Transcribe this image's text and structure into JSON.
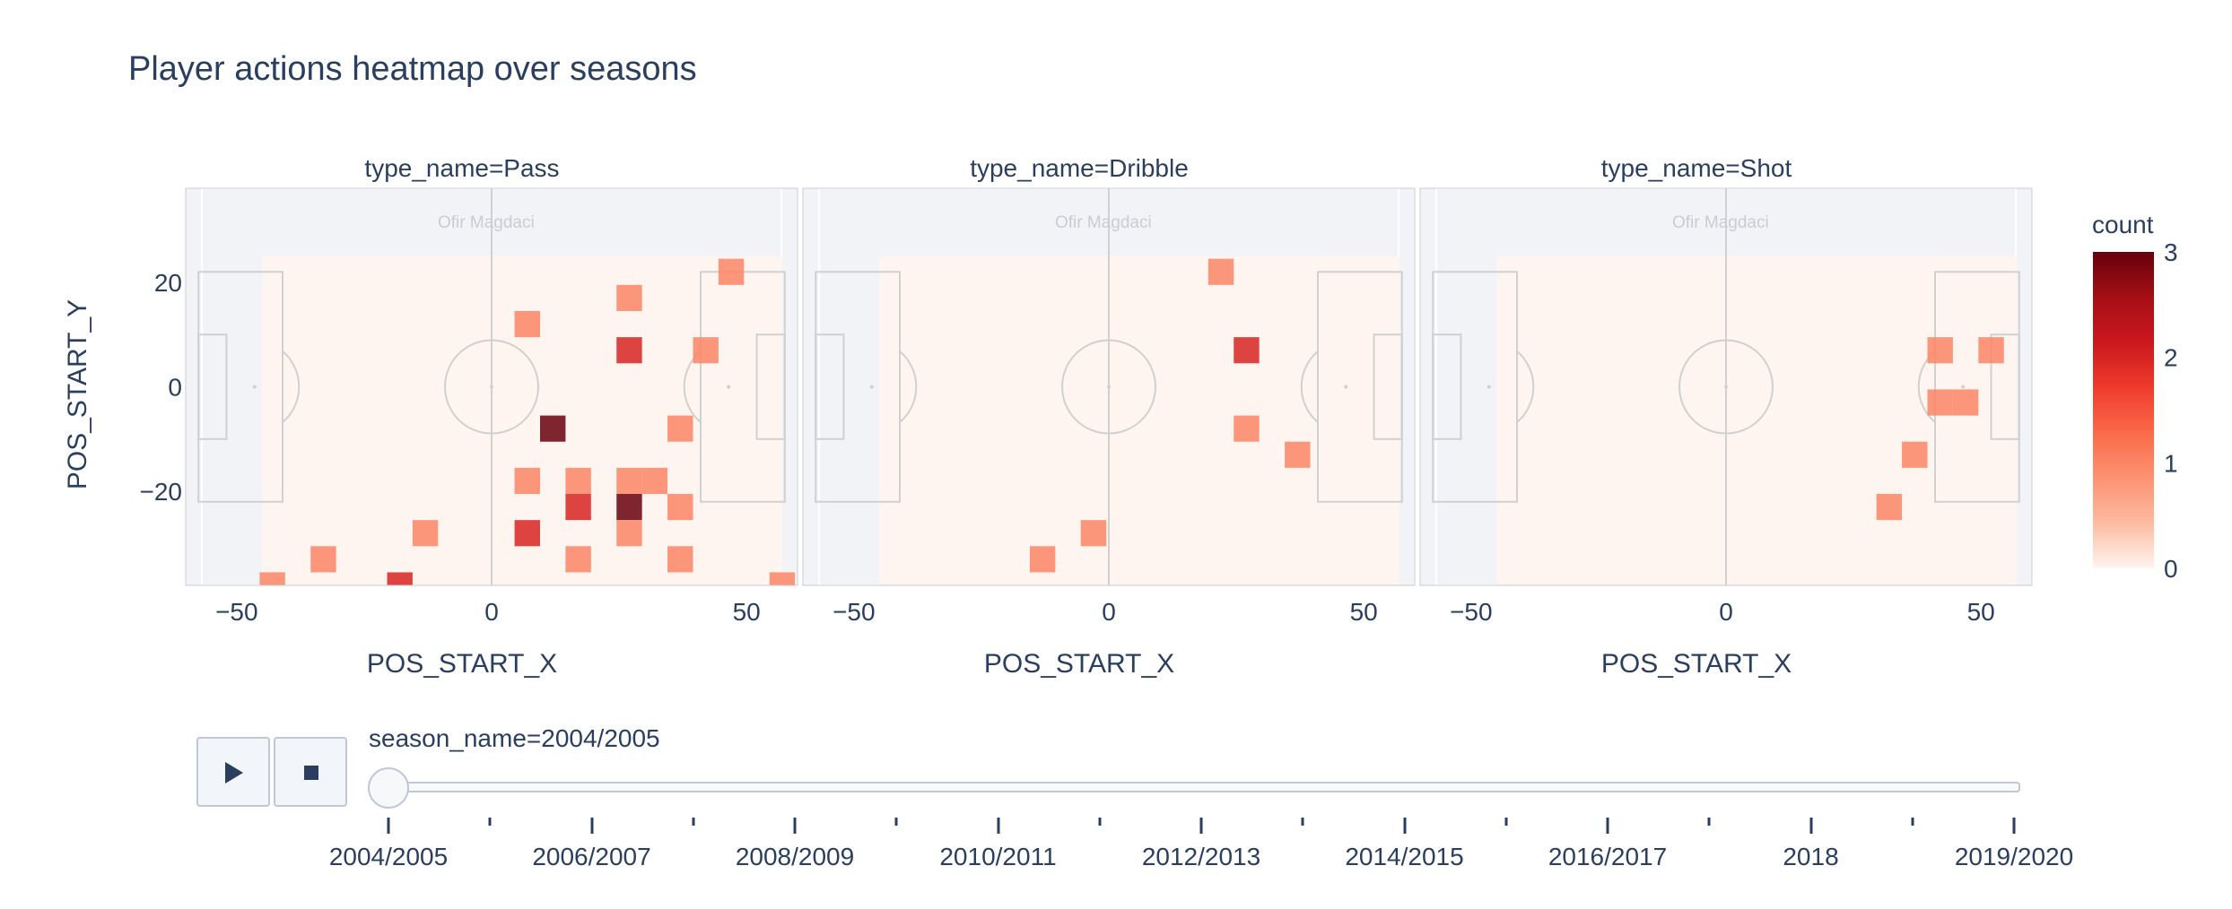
{
  "title": "Player actions heatmap over seasons",
  "watermark": "Ofir Magdaci",
  "chart_data": {
    "type": "heatmap",
    "x_range": [
      -60,
      60
    ],
    "y_range": [
      -38,
      38
    ],
    "x_ticks": [
      -50,
      0,
      50
    ],
    "x_tick_labels": [
      "−50",
      "0",
      "50"
    ],
    "y_ticks": [
      20,
      0,
      -20
    ],
    "y_tick_labels": [
      "20",
      "0",
      "−20"
    ],
    "xlabel": "POS_START_X",
    "ylabel": "POS_START_Y",
    "bin_width": 5,
    "bin_height": 5,
    "background_count": 0,
    "background_x_range": [
      -45,
      57
    ],
    "background_y_range": [
      -38,
      25
    ],
    "colorbar": {
      "title": "count",
      "min": 0,
      "max": 3,
      "ticks": [
        0,
        1,
        2,
        3
      ],
      "tick_labels": [
        "0",
        "1",
        "2",
        "3"
      ],
      "colors": [
        "#fff5f0",
        "#fcbba1",
        "#fc9272",
        "#fb6a4a",
        "#ef3b2c",
        "#cb181d",
        "#a50f15",
        "#67000d"
      ]
    },
    "facets": [
      {
        "label": "type_name=Pass",
        "cells": [
          {
            "x": 7,
            "y": 12,
            "count": 1
          },
          {
            "x": 27,
            "y": 17,
            "count": 1
          },
          {
            "x": 47,
            "y": 22,
            "count": 1
          },
          {
            "x": 27,
            "y": 7,
            "count": 2
          },
          {
            "x": 42,
            "y": 7,
            "count": 1
          },
          {
            "x": 12,
            "y": -8,
            "count": 3
          },
          {
            "x": 37,
            "y": -8,
            "count": 1
          },
          {
            "x": 7,
            "y": -18,
            "count": 1
          },
          {
            "x": 17,
            "y": -18,
            "count": 1
          },
          {
            "x": 27,
            "y": -18,
            "count": 1
          },
          {
            "x": 32,
            "y": -18,
            "count": 1
          },
          {
            "x": 17,
            "y": -23,
            "count": 2
          },
          {
            "x": 27,
            "y": -23,
            "count": 3
          },
          {
            "x": 37,
            "y": -23,
            "count": 1
          },
          {
            "x": 7,
            "y": -28,
            "count": 2
          },
          {
            "x": -13,
            "y": -28,
            "count": 1
          },
          {
            "x": 27,
            "y": -28,
            "count": 1
          },
          {
            "x": -33,
            "y": -33,
            "count": 1
          },
          {
            "x": 17,
            "y": -33,
            "count": 1
          },
          {
            "x": 37,
            "y": -33,
            "count": 1
          },
          {
            "x": -43,
            "y": -38,
            "count": 1
          },
          {
            "x": -18,
            "y": -38,
            "count": 2
          },
          {
            "x": 57,
            "y": -38,
            "count": 1
          }
        ]
      },
      {
        "label": "type_name=Dribble",
        "cells": [
          {
            "x": 22,
            "y": 22,
            "count": 1
          },
          {
            "x": 27,
            "y": 7,
            "count": 2
          },
          {
            "x": 27,
            "y": -8,
            "count": 1
          },
          {
            "x": 37,
            "y": -13,
            "count": 1
          },
          {
            "x": -3,
            "y": -28,
            "count": 1
          },
          {
            "x": -13,
            "y": -33,
            "count": 1
          }
        ]
      },
      {
        "label": "type_name=Shot",
        "cells": [
          {
            "x": 42,
            "y": 7,
            "count": 1
          },
          {
            "x": 52,
            "y": 7,
            "count": 1
          },
          {
            "x": 42,
            "y": -3,
            "count": 1
          },
          {
            "x": 47,
            "y": -3,
            "count": 1
          },
          {
            "x": 37,
            "y": -13,
            "count": 1
          },
          {
            "x": 32,
            "y": -23,
            "count": 1
          }
        ]
      }
    ]
  },
  "controls": {
    "play_icon": "play-icon",
    "stop_icon": "stop-icon",
    "current_label": "season_name=2004/2005",
    "current_index": 0,
    "steps": [
      {
        "label": "2004/2005",
        "shown": true
      },
      {
        "label": "",
        "shown": false
      },
      {
        "label": "2006/2007",
        "shown": true
      },
      {
        "label": "",
        "shown": false
      },
      {
        "label": "2008/2009",
        "shown": true
      },
      {
        "label": "",
        "shown": false
      },
      {
        "label": "2010/2011",
        "shown": true
      },
      {
        "label": "",
        "shown": false
      },
      {
        "label": "2012/2013",
        "shown": true
      },
      {
        "label": "",
        "shown": false
      },
      {
        "label": "2014/2015",
        "shown": true
      },
      {
        "label": "",
        "shown": false
      },
      {
        "label": "2016/2017",
        "shown": true
      },
      {
        "label": "",
        "shown": false
      },
      {
        "label": "2018",
        "shown": true
      },
      {
        "label": "",
        "shown": false
      },
      {
        "label": "2019/2020",
        "shown": true
      }
    ]
  }
}
